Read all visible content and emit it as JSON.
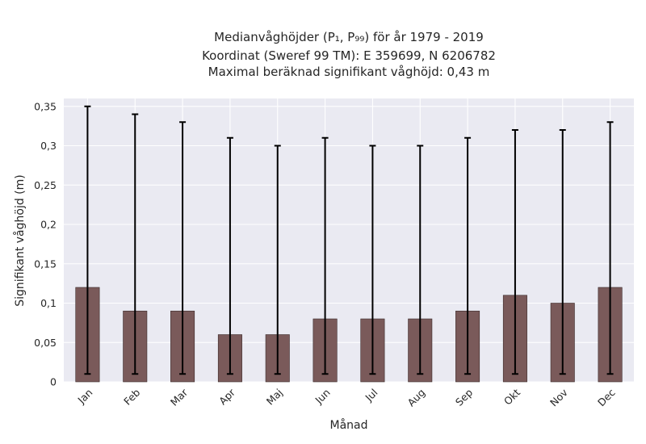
{
  "chart_data": {
    "type": "bar",
    "title_lines": [
      "Medianvåghöjder (P₁, P₉₉) för år 1979 - 2019",
      "Koordinat (Sweref 99 TM): E 359699, N 6206782",
      "Maximal beräknad signifikant våghöjd: 0,43 m"
    ],
    "xlabel": "Månad",
    "ylabel": "Signifikant våghöjd (m)",
    "categories": [
      "Jan",
      "Feb",
      "Mar",
      "Apr",
      "Maj",
      "Jun",
      "Jul",
      "Aug",
      "Sep",
      "Okt",
      "Nov",
      "Dec"
    ],
    "series": [
      {
        "values": [
          0.12,
          0.09,
          0.09,
          0.06,
          0.06,
          0.08,
          0.08,
          0.08,
          0.09,
          0.11,
          0.1,
          0.12
        ],
        "err_low": [
          0.01,
          0.01,
          0.01,
          0.01,
          0.01,
          0.01,
          0.01,
          0.01,
          0.01,
          0.01,
          0.01,
          0.01
        ],
        "err_high": [
          0.35,
          0.34,
          0.33,
          0.31,
          0.3,
          0.31,
          0.3,
          0.3,
          0.31,
          0.32,
          0.32,
          0.33
        ]
      }
    ],
    "ylim": [
      0,
      0.36
    ],
    "yticks": [
      0,
      0.05,
      0.1,
      0.15,
      0.2,
      0.25,
      0.3,
      0.35
    ],
    "ytick_labels": [
      "0",
      "0,05",
      "0,1",
      "0,15",
      "0,2",
      "0,25",
      "0,3",
      "0,35"
    ],
    "grid": true,
    "colors": {
      "background": "#eaeaf2",
      "bar": "#7a5a5a",
      "bar_edge": "#3a2a2a",
      "error_bar": "#000000",
      "grid": "#ffffff"
    }
  }
}
